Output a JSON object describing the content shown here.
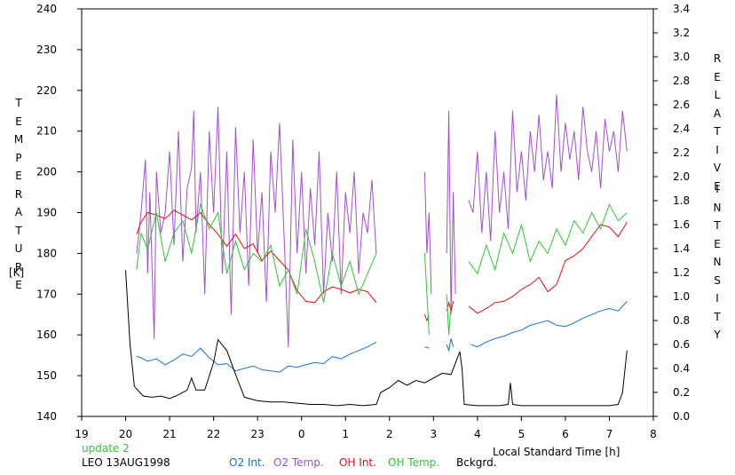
{
  "chart_data": {
    "type": "line",
    "update_note": "update 2",
    "station_date": "LEO 13AUG1998",
    "left_axis": {
      "label_letters": [
        "T",
        "E",
        "M",
        "P",
        "E",
        "R",
        "A",
        "T",
        "U",
        "R",
        "E"
      ],
      "unit": "[K]",
      "range": [
        140,
        240
      ],
      "ticks": [
        "140",
        "150",
        "160",
        "170",
        "180",
        "190",
        "200",
        "210",
        "220",
        "230",
        "240"
      ]
    },
    "right_axis": {
      "label_word1": [
        "R",
        "E",
        "L",
        "A",
        "T",
        "I",
        "V",
        "E"
      ],
      "label_word2": [
        "I",
        "N",
        "T",
        "E",
        "N",
        "S",
        "I",
        "T",
        "Y"
      ],
      "range": [
        0.0,
        3.4
      ],
      "ticks": [
        "0.0",
        "0.2",
        "0.4",
        "0.6",
        "0.8",
        "1.0",
        "1.2",
        "1.4",
        "1.6",
        "1.8",
        "2.0",
        "2.2",
        "2.4",
        "2.6",
        "2.8",
        "3.0",
        "3.2",
        "3.4"
      ]
    },
    "x_axis": {
      "label": "Local Standard Time [h]",
      "range": [
        19,
        32
      ],
      "ticks": [
        "19",
        "20",
        "21",
        "22",
        "23",
        "0",
        "1",
        "2",
        "3",
        "4",
        "5",
        "6",
        "7",
        "8"
      ]
    },
    "grid": false,
    "legend_position": "bottom",
    "series": [
      {
        "name": "O2 Int.",
        "color": "#1a6fd6",
        "axis": "right",
        "segments": [
          {
            "x": [
              20.25,
              20.35,
              20.5,
              20.7,
              20.9,
              21.1,
              21.3,
              21.5,
              21.7,
              21.9,
              22.1,
              22.3,
              22.5,
              22.7,
              22.9,
              23.1,
              23.3,
              23.5,
              23.7,
              23.9,
              24.1,
              24.3,
              24.5,
              24.7,
              24.9,
              25.1,
              25.3,
              25.5,
              25.7
            ],
            "y": [
              0.5,
              0.49,
              0.46,
              0.48,
              0.43,
              0.47,
              0.52,
              0.5,
              0.57,
              0.49,
              0.43,
              0.44,
              0.38,
              0.4,
              0.42,
              0.39,
              0.38,
              0.37,
              0.42,
              0.41,
              0.43,
              0.45,
              0.44,
              0.5,
              0.48,
              0.52,
              0.55,
              0.58,
              0.62
            ]
          },
          {
            "x": [
              26.8,
              26.9
            ],
            "y": [
              0.58,
              0.57
            ]
          },
          {
            "x": [
              27.3,
              27.35,
              27.4,
              27.45
            ],
            "y": [
              0.6,
              0.55,
              0.65,
              0.58
            ]
          },
          {
            "x": [
              27.85,
              28.0,
              28.2,
              28.4,
              28.6,
              28.8,
              29.0,
              29.2,
              29.4,
              29.6,
              29.8,
              30.0,
              30.2,
              30.4,
              30.6,
              30.8,
              31.0,
              31.2,
              31.4
            ],
            "y": [
              0.6,
              0.58,
              0.62,
              0.65,
              0.67,
              0.7,
              0.72,
              0.76,
              0.78,
              0.8,
              0.76,
              0.75,
              0.78,
              0.82,
              0.85,
              0.88,
              0.9,
              0.88,
              0.96
            ]
          }
        ]
      },
      {
        "name": "O2 Temp.",
        "color": "#a24fd0",
        "axis": "left",
        "segments": [
          {
            "x": [
              20.25,
              20.35,
              20.45,
              20.5,
              20.55,
              20.65,
              20.7,
              20.8,
              20.9,
              21.0,
              21.1,
              21.2,
              21.3,
              21.4,
              21.5,
              21.55,
              21.6,
              21.7,
              21.8,
              21.9,
              22.0,
              22.1,
              22.2,
              22.3,
              22.4,
              22.5,
              22.6,
              22.7,
              22.8,
              22.9,
              23.0,
              23.1,
              23.2,
              23.3,
              23.4,
              23.5,
              23.6,
              23.7,
              23.8,
              23.9,
              24.0,
              24.1,
              24.2,
              24.3,
              24.4,
              24.5,
              24.6,
              24.7,
              24.8,
              24.9,
              25.0,
              25.1,
              25.2,
              25.3,
              25.4,
              25.5,
              25.6,
              25.7
            ],
            "y": [
              180,
              190,
              203,
              175,
              195,
              159,
              200,
              185,
              190,
              205,
              182,
              210,
              178,
              196,
              201,
              215,
              185,
              200,
              170,
              210,
              190,
              216,
              175,
              205,
              165,
              211,
              185,
              200,
              172,
              208,
              180,
              195,
              168,
              205,
              190,
              212,
              185,
              157,
              208,
              180,
              200,
              175,
              196,
              182,
              205,
              170,
              190,
              178,
              200,
              170,
              195,
              185,
              200,
              175,
              190,
              185,
              198,
              180
            ]
          },
          {
            "x": [
              26.8,
              26.85,
              26.9,
              26.95
            ],
            "y": [
              200,
              180,
              190,
              170
            ]
          },
          {
            "x": [
              27.3,
              27.35,
              27.4,
              27.45,
              27.5
            ],
            "y": [
              180,
              215,
              165,
              195,
              170
            ]
          },
          {
            "x": [
              27.8,
              27.9,
              28.0,
              28.1,
              28.2,
              28.3,
              28.4,
              28.5,
              28.6,
              28.7,
              28.8,
              28.9,
              29.0,
              29.1,
              29.2,
              29.3,
              29.4,
              29.5,
              29.6,
              29.7,
              29.8,
              29.9,
              30.0,
              30.1,
              30.2,
              30.3,
              30.4,
              30.5,
              30.6,
              30.7,
              30.8,
              30.9,
              31.0,
              31.1,
              31.2,
              31.3,
              31.4
            ],
            "y": [
              193,
              190,
              205,
              185,
              200,
              183,
              210,
              190,
              200,
              186,
              215,
              195,
              205,
              193,
              210,
              200,
              214,
              198,
              205,
              196,
              219,
              200,
              212,
              203,
              210,
              198,
              216,
              205,
              200,
              210,
              196,
              213,
              205,
              210,
              200,
              215,
              205
            ]
          }
        ]
      },
      {
        "name": "OH Int.",
        "color": "#e01010",
        "axis": "right",
        "segments": [
          {
            "x": [
              20.25,
              20.35,
              20.5,
              20.7,
              20.9,
              21.1,
              21.3,
              21.5,
              21.7,
              21.9,
              22.1,
              22.3,
              22.5,
              22.7,
              22.9,
              23.1,
              23.3,
              23.5,
              23.7,
              23.9,
              24.1,
              24.3,
              24.5,
              24.7,
              24.9,
              25.1,
              25.3,
              25.5,
              25.7
            ],
            "y": [
              1.52,
              1.62,
              1.7,
              1.68,
              1.65,
              1.72,
              1.68,
              1.64,
              1.7,
              1.6,
              1.52,
              1.42,
              1.52,
              1.4,
              1.44,
              1.3,
              1.38,
              1.3,
              1.22,
              1.05,
              0.96,
              0.95,
              1.04,
              1.08,
              1.06,
              1.03,
              1.06,
              1.04,
              0.95
            ]
          },
          {
            "x": [
              26.8,
              26.85,
              26.9
            ],
            "y": [
              0.85,
              0.8,
              0.84
            ]
          },
          {
            "x": [
              27.3,
              27.35,
              27.4,
              27.45
            ],
            "y": [
              0.88,
              0.95,
              0.88,
              0.96
            ]
          },
          {
            "x": [
              27.8,
              28.0,
              28.2,
              28.4,
              28.6,
              28.8,
              29.0,
              29.2,
              29.4,
              29.6,
              29.8,
              30.0,
              30.2,
              30.4,
              30.6,
              30.8,
              31.0,
              31.2,
              31.4
            ],
            "y": [
              0.92,
              0.86,
              0.9,
              0.95,
              0.96,
              1.0,
              1.06,
              1.1,
              1.16,
              1.04,
              1.1,
              1.3,
              1.34,
              1.4,
              1.5,
              1.6,
              1.58,
              1.5,
              1.62
            ]
          }
        ]
      },
      {
        "name": "OH Temp.",
        "color": "#33c33a",
        "axis": "left",
        "segments": [
          {
            "x": [
              20.25,
              20.35,
              20.5,
              20.7,
              20.9,
              21.1,
              21.3,
              21.5,
              21.7,
              21.9,
              22.1,
              22.3,
              22.5,
              22.7,
              22.9,
              23.1,
              23.3,
              23.5,
              23.7,
              23.9,
              24.1,
              24.3,
              24.5,
              24.7,
              24.9,
              25.1,
              25.3,
              25.5,
              25.7
            ],
            "y": [
              176,
              185,
              181,
              190,
              178,
              185,
              188,
              180,
              192,
              186,
              190,
              175,
              183,
              176,
              180,
              178,
              182,
              172,
              176,
              170,
              186,
              178,
              168,
              180,
              172,
              178,
              170,
              175,
              180
            ]
          },
          {
            "x": [
              26.8,
              26.85,
              26.9
            ],
            "y": [
              180,
              170,
              160
            ]
          },
          {
            "x": [
              27.3,
              27.35,
              27.4
            ],
            "y": [
              170,
              160,
              168
            ]
          },
          {
            "x": [
              27.8,
              28.0,
              28.2,
              28.4,
              28.6,
              28.8,
              29.0,
              29.2,
              29.4,
              29.6,
              29.8,
              30.0,
              30.2,
              30.4,
              30.6,
              30.8,
              31.0,
              31.2,
              31.4
            ],
            "y": [
              178,
              175,
              182,
              176,
              185,
              180,
              187,
              178,
              183,
              180,
              186,
              182,
              188,
              185,
              190,
              186,
              192,
              188,
              190
            ]
          }
        ]
      },
      {
        "name": "Bckgrd.",
        "color": "#000000",
        "axis": "right",
        "segments": [
          {
            "x": [
              20.0,
              20.1,
              20.2,
              20.4,
              20.6,
              20.8,
              21.0,
              21.2,
              21.4,
              21.5,
              21.6,
              21.8,
              22.0,
              22.1,
              22.3,
              22.5,
              22.7,
              23.0,
              23.3,
              23.6,
              23.9,
              24.2,
              24.5,
              24.8,
              25.1,
              25.4,
              25.7,
              25.8,
              26.0,
              26.2,
              26.4,
              26.6,
              26.8,
              27.0,
              27.2,
              27.4,
              27.6,
              27.65,
              27.7,
              28.0,
              28.5,
              28.7,
              28.75,
              28.8,
              29.0,
              29.5,
              30.0,
              30.5,
              31.0,
              31.2,
              31.3,
              31.4
            ],
            "y": [
              1.22,
              0.6,
              0.25,
              0.17,
              0.16,
              0.17,
              0.15,
              0.18,
              0.22,
              0.32,
              0.22,
              0.22,
              0.45,
              0.64,
              0.55,
              0.35,
              0.16,
              0.13,
              0.12,
              0.12,
              0.11,
              0.1,
              0.1,
              0.09,
              0.1,
              0.09,
              0.1,
              0.2,
              0.24,
              0.3,
              0.26,
              0.3,
              0.28,
              0.32,
              0.36,
              0.35,
              0.54,
              0.4,
              0.1,
              0.09,
              0.09,
              0.1,
              0.28,
              0.1,
              0.09,
              0.09,
              0.09,
              0.09,
              0.09,
              0.1,
              0.2,
              0.55
            ]
          }
        ]
      }
    ]
  }
}
